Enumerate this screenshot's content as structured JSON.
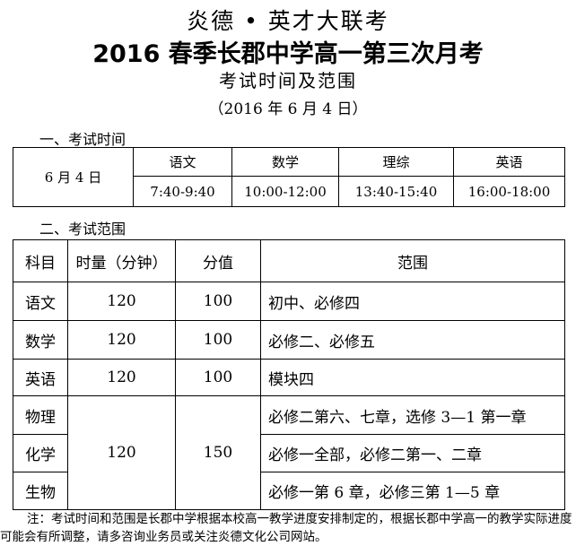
{
  "header": {
    "brand": "炎德 • 英才大联考",
    "title": "2016 春季长郡中学高一第三次月考",
    "subtitle": "考试时间及范围",
    "date": "（2016 年 6 月 4 日）"
  },
  "schedule": {
    "heading": "一、考试时间",
    "day": "6 月 4 日",
    "subjects": [
      "语文",
      "数学",
      "理综",
      "英语"
    ],
    "times": [
      "7:40-9:40",
      "10:00-12:00",
      "13:40-15:40",
      "16:00-18:00"
    ]
  },
  "scope": {
    "heading": "二、考试范围",
    "columns": [
      "科目",
      "时量（分钟）",
      "分值",
      "范围"
    ],
    "rows": [
      {
        "subject": "语文",
        "duration": "120",
        "score": "100",
        "range": "初中、必修四"
      },
      {
        "subject": "数学",
        "duration": "120",
        "score": "100",
        "range": "必修二、必修五"
      },
      {
        "subject": "英语",
        "duration": "120",
        "score": "100",
        "range": "模块四"
      },
      {
        "subject": "物理",
        "range": "必修二第六、七章，选修 3—1 第一章"
      },
      {
        "subject": "化学",
        "range": "必修一全部，必修二第一、二章"
      },
      {
        "subject": "生物",
        "range": "必修一第 6 章，必修三第 1—5 章"
      }
    ],
    "combined_duration": "120",
    "combined_score": "150"
  },
  "note": "注：考试时间和范围是长郡中学根据本校高一教学进度安排制定的，根据长郡中学高一的教学实际进度可能会有所调整，请多咨询业务员或关注炎德文化公司网站。"
}
